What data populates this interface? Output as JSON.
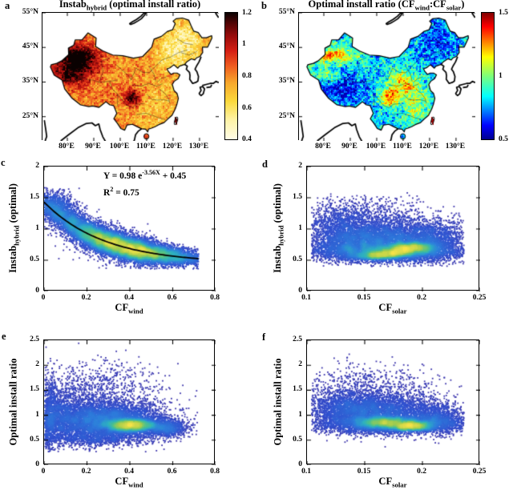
{
  "figure": {
    "background": "#ffffff",
    "panels": {
      "a": {
        "letter": "a",
        "title": [
          {
            "t": "Instab"
          },
          {
            "t": "hybrid",
            "sub": true
          },
          {
            "t": " (optimal install ratio)"
          }
        ],
        "x_ticks": {
          "labels": [
            "80°E",
            "90°E",
            "100°E",
            "110°E",
            "120°E",
            "130°E"
          ],
          "values": [
            80,
            90,
            100,
            110,
            120,
            130
          ]
        },
        "y_ticks": {
          "labels": [
            "55°N",
            "45°N",
            "35°N",
            "25°N"
          ],
          "values": [
            55,
            45,
            35,
            25
          ]
        },
        "colorbar": {
          "range": [
            0.4,
            1.2
          ],
          "tick_labels": [
            "1.2",
            "1",
            "0.8",
            "0.6",
            "0.4"
          ],
          "tick_values": [
            1.2,
            1,
            0.8,
            0.6,
            0.4
          ],
          "colormap": "hot_reversed"
        }
      },
      "b": {
        "letter": "b",
        "title": [
          {
            "t": "Optimal install ratio (CF"
          },
          {
            "t": "wind",
            "sub": true
          },
          {
            "t": ":CF"
          },
          {
            "t": "solar",
            "sub": true
          },
          {
            "t": ")"
          }
        ],
        "x_ticks": {
          "labels": [
            "80°E",
            "90°E",
            "100°E",
            "110°E",
            "120°E",
            "130°E"
          ],
          "values": [
            80,
            90,
            100,
            110,
            120,
            130
          ]
        },
        "y_ticks": {
          "labels": [
            "55°N",
            "45°N",
            "35°N",
            "25°N"
          ],
          "values": [
            55,
            45,
            35,
            25
          ]
        },
        "colorbar": {
          "range": [
            0.5,
            1.5
          ],
          "tick_labels": [
            "1.5",
            "1",
            "0.5"
          ],
          "tick_values": [
            1.5,
            1,
            0.5
          ],
          "colormap": "jet"
        }
      },
      "c": {
        "letter": "c",
        "ylabel": [
          {
            "t": "Instab"
          },
          {
            "t": "hybrid",
            "sub": true
          },
          {
            "t": " (optimal)"
          }
        ],
        "xlabel": [
          {
            "t": "CF"
          },
          {
            "t": "wind",
            "sub": true
          }
        ],
        "x_ticks": {
          "labels": [
            "0",
            "0.2",
            "0.4",
            "0.6",
            "0.8"
          ],
          "values": [
            0,
            0.2,
            0.4,
            0.6,
            0.8
          ]
        },
        "y_ticks": {
          "labels": [
            "0",
            "0.5",
            "1",
            "1.5",
            "2"
          ],
          "values": [
            0,
            0.5,
            1,
            1.5,
            2
          ]
        },
        "annotation": {
          "line1": [
            {
              "t": "Y = 0.98 e"
            },
            {
              "t": "-3.56X",
              "sup": true
            },
            {
              "t": " + 0.45"
            }
          ],
          "line2": [
            {
              "t": "R"
            },
            {
              "t": "2",
              "sup": true
            },
            {
              "t": " = 0.75"
            }
          ]
        }
      },
      "d": {
        "letter": "d",
        "ylabel": [
          {
            "t": "Instab"
          },
          {
            "t": "hybrid",
            "sub": true
          },
          {
            "t": " (optimal)"
          }
        ],
        "xlabel": [
          {
            "t": "CF"
          },
          {
            "t": "solar",
            "sub": true
          }
        ],
        "x_ticks": {
          "labels": [
            "0.1",
            "0.15",
            "0.2",
            "0.25"
          ],
          "values": [
            0.1,
            0.15,
            0.2,
            0.25
          ]
        },
        "y_ticks": {
          "labels": [
            "0",
            "0.5",
            "1",
            "1.5",
            "2"
          ],
          "values": [
            0,
            0.5,
            1,
            1.5,
            2
          ]
        }
      },
      "e": {
        "letter": "e",
        "ylabel": [
          {
            "t": "Optimal install ratio"
          }
        ],
        "xlabel": [
          {
            "t": "CF"
          },
          {
            "t": "wind",
            "sub": true
          }
        ],
        "x_ticks": {
          "labels": [
            "0",
            "0.2",
            "0.4",
            "0.6",
            "0.8"
          ],
          "values": [
            0,
            0.2,
            0.4,
            0.6,
            0.8
          ]
        },
        "y_ticks": {
          "labels": [
            "0",
            "0.5",
            "1",
            "1.5",
            "2",
            "2.5"
          ],
          "values": [
            0,
            0.5,
            1,
            1.5,
            2,
            2.5
          ]
        }
      },
      "f": {
        "letter": "f",
        "ylabel": [
          {
            "t": "Optimal install ratio"
          }
        ],
        "xlabel": [
          {
            "t": "CF"
          },
          {
            "t": "solar",
            "sub": true
          }
        ],
        "x_ticks": {
          "labels": [
            "0.1",
            "0.15",
            "0.2",
            "0.25"
          ],
          "values": [
            0.1,
            0.15,
            0.2,
            0.25
          ]
        },
        "y_ticks": {
          "labels": [
            "0",
            "0.5",
            "1",
            "1.5",
            "2",
            "2.5"
          ],
          "values": [
            0,
            0.5,
            1,
            1.5,
            2,
            2.5
          ]
        }
      }
    }
  },
  "colors": {
    "axis": "#000000",
    "density_colormap": [
      [
        0,
        "#3b2ba2"
      ],
      [
        0.25,
        "#3050cf"
      ],
      [
        0.45,
        "#2f7fdc"
      ],
      [
        0.6,
        "#2fb0c2"
      ],
      [
        0.72,
        "#51c28b"
      ],
      [
        0.84,
        "#a5cd4e"
      ],
      [
        1,
        "#f7e34a"
      ]
    ],
    "hot_reversed_colormap": [
      [
        0,
        "#fffce6"
      ],
      [
        0.15,
        "#fef3a8"
      ],
      [
        0.3,
        "#fbd93c"
      ],
      [
        0.45,
        "#f7a62b"
      ],
      [
        0.58,
        "#ef5c20"
      ],
      [
        0.7,
        "#d41f14"
      ],
      [
        0.82,
        "#960b0b"
      ],
      [
        0.92,
        "#4f0404"
      ],
      [
        1,
        "#0a0101"
      ]
    ],
    "jet_colormap": [
      [
        0,
        "#00008f"
      ],
      [
        0.11,
        "#0000ff"
      ],
      [
        0.34,
        "#00ffff"
      ],
      [
        0.5,
        "#7dff7a"
      ],
      [
        0.65,
        "#ffff00"
      ],
      [
        0.89,
        "#ff0000"
      ],
      [
        1,
        "#800000"
      ]
    ],
    "fit_line": "#000000"
  },
  "chart_data": [
    {
      "panel": "a",
      "type": "heatmap",
      "kind": "map",
      "title": "Instab_hybrid (optimal install ratio)",
      "region": "China",
      "lon_range": [
        70.6,
        137.3
      ],
      "lat_range": [
        18.0,
        55.0
      ],
      "value_range": [
        0.4,
        1.2
      ],
      "colormap": "hot_reversed",
      "colorbar_ticks": [
        0.4,
        0.6,
        0.8,
        1,
        1.2
      ],
      "x_tick_values": [
        80,
        90,
        100,
        110,
        120,
        130
      ],
      "y_tick_values": [
        55,
        45,
        35,
        25
      ],
      "pattern_model": {
        "base": 0.78,
        "noise_amp": 0.09,
        "bumps": [
          {
            "lon": 83,
            "lat": 42.5,
            "slon": 6,
            "slat": 2.5,
            "amp": 0.38
          },
          {
            "lon": 80,
            "lat": 36.5,
            "slon": 4.5,
            "slat": 2.5,
            "amp": 0.3
          },
          {
            "lon": 86,
            "lat": 40,
            "slon": 5,
            "slat": 3,
            "amp": 0.22
          },
          {
            "lon": 104.8,
            "lat": 30.5,
            "slon": 2.2,
            "slat": 1.8,
            "amp": 0.42
          },
          {
            "lon": 124,
            "lat": 46.5,
            "slon": 5.5,
            "slat": 4.5,
            "amp": -0.24
          },
          {
            "lon": 118,
            "lat": 42,
            "slon": 4,
            "slat": 3,
            "amp": -0.12
          },
          {
            "lon": 113,
            "lat": 27,
            "slon": 6,
            "slat": 5,
            "amp": -0.1
          },
          {
            "lon": 93,
            "lat": 31,
            "slon": 6,
            "slat": 3,
            "amp": 0.05
          }
        ],
        "taiwan_value": 1.1,
        "hainan_value": 0.88
      }
    },
    {
      "panel": "b",
      "type": "heatmap",
      "kind": "map",
      "title": "Optimal install ratio (CF_wind:CF_solar)",
      "region": "China",
      "lon_range": [
        70.6,
        137.3
      ],
      "lat_range": [
        18.0,
        55.0
      ],
      "value_range": [
        0.5,
        1.5
      ],
      "colormap": "jet",
      "colorbar_ticks": [
        0.5,
        1,
        1.5
      ],
      "x_tick_values": [
        80,
        90,
        100,
        110,
        120,
        130
      ],
      "y_tick_values": [
        55,
        45,
        35,
        25
      ],
      "pattern_model": {
        "base": 0.82,
        "noise_amp": 0.13,
        "bumps": [
          {
            "lon": 86,
            "lat": 33,
            "slon": 7,
            "slat": 3.5,
            "amp": -0.22
          },
          {
            "lon": 123,
            "lat": 47,
            "slon": 6,
            "slat": 5,
            "amp": -0.16
          },
          {
            "lon": 83,
            "lat": 42.8,
            "slon": 6,
            "slat": 1.6,
            "amp": 0.45
          },
          {
            "lon": 81,
            "lat": 37,
            "slon": 4,
            "slat": 1.4,
            "amp": 0.3
          },
          {
            "lon": 104.8,
            "lat": 30.8,
            "slon": 2.3,
            "slat": 1.8,
            "amp": 0.55
          },
          {
            "lon": 112,
            "lat": 34,
            "slon": 3.5,
            "slat": 2.5,
            "amp": 0.3
          },
          {
            "lon": 115,
            "lat": 27.5,
            "slon": 4,
            "slat": 3,
            "amp": 0.22
          },
          {
            "lon": 108,
            "lat": 36,
            "slon": 3,
            "slat": 2.5,
            "amp": 0.15
          }
        ],
        "taiwan_value": 1.45,
        "hainan_value": 0.75
      }
    },
    {
      "panel": "c",
      "type": "scatter",
      "kind": "density_scatter",
      "xlabel": "CF_wind",
      "ylabel": "Instab_hybrid (optimal)",
      "xlim": [
        0,
        0.8
      ],
      "ylim": [
        0,
        2
      ],
      "x_tick_values": [
        0,
        0.2,
        0.4,
        0.6,
        0.8
      ],
      "y_tick_values": [
        0,
        0.5,
        1,
        1.5,
        2
      ],
      "fit": {
        "expression": "Y = 0.98 e^(-3.56X) + 0.45",
        "r_squared": 0.75,
        "a": 0.98,
        "k": -3.56,
        "c": 0.45,
        "x_range": [
          0,
          0.72
        ]
      },
      "seed": 7,
      "clip": {
        "x": [
          0.002,
          0.72
        ],
        "y": [
          0.36,
          1.66
        ]
      },
      "clusters": [
        {
          "type": "band",
          "x_mean": 0.36,
          "x_sigma": 0.18,
          "x_min": 0.002,
          "x_max": 0.72,
          "sigma0": 0.125,
          "sigma_slope": -0.085,
          "count": 11000
        },
        {
          "type": "band",
          "x_mean": 0.3,
          "x_sigma": 0.22,
          "x_min": 0.002,
          "x_max": 0.72,
          "sigma0": 0.19,
          "sigma_slope": -0.12,
          "count": 2500
        },
        {
          "type": "gauss",
          "cx": 0.05,
          "cy": 1.35,
          "sx": 0.05,
          "sy": 0.13,
          "count": 700
        }
      ]
    },
    {
      "panel": "d",
      "type": "scatter",
      "kind": "density_scatter",
      "xlabel": "CF_solar",
      "ylabel": "Instab_hybrid (optimal)",
      "xlim": [
        0.1,
        0.25
      ],
      "ylim": [
        0,
        2
      ],
      "x_tick_values": [
        0.1,
        0.15,
        0.2,
        0.25
      ],
      "y_tick_values": [
        0,
        0.5,
        1,
        1.5,
        2
      ],
      "seed": 11,
      "clip": {
        "x": [
          0.104,
          0.236
        ],
        "y": [
          0.4,
          1.6
        ]
      },
      "clusters": [
        {
          "type": "gauss",
          "cx": 0.163,
          "cy": 0.83,
          "sx": 0.03,
          "sy": 0.17,
          "count": 5200
        },
        {
          "type": "gauss",
          "cx": 0.17,
          "cy": 0.63,
          "sx": 0.033,
          "sy": 0.075,
          "count": 3600
        },
        {
          "type": "gauss",
          "cx": 0.19,
          "cy": 0.7,
          "sx": 0.011,
          "sy": 0.035,
          "count": 1500
        },
        {
          "type": "gauss",
          "cx": 0.161,
          "cy": 0.575,
          "sx": 0.01,
          "sy": 0.028,
          "count": 800
        },
        {
          "type": "gauss",
          "cx": 0.176,
          "cy": 0.62,
          "sx": 0.009,
          "sy": 0.028,
          "count": 650
        },
        {
          "type": "gauss",
          "cx": 0.147,
          "cy": 1.18,
          "sx": 0.03,
          "sy": 0.17,
          "count": 900
        },
        {
          "type": "gauss",
          "cx": 0.21,
          "cy": 0.82,
          "sx": 0.013,
          "sy": 0.15,
          "count": 1100
        },
        {
          "type": "gauss",
          "cx": 0.128,
          "cy": 0.95,
          "sx": 0.014,
          "sy": 0.22,
          "count": 700
        }
      ]
    },
    {
      "panel": "e",
      "type": "scatter",
      "kind": "density_scatter",
      "xlabel": "CF_wind",
      "ylabel": "Optimal install ratio",
      "xlim": [
        0,
        0.8
      ],
      "ylim": [
        0,
        2.5
      ],
      "x_tick_values": [
        0,
        0.2,
        0.4,
        0.6,
        0.8
      ],
      "y_tick_values": [
        0,
        0.5,
        1,
        1.5,
        2,
        2.5
      ],
      "seed": 13,
      "clip": {
        "x": [
          0.004,
          0.715
        ],
        "y": [
          0.27,
          2.47
        ]
      },
      "clusters": [
        {
          "type": "gauss",
          "cx": 0.3,
          "cy": 0.88,
          "sx": 0.13,
          "sy": 0.2,
          "count": 5500
        },
        {
          "type": "gauss",
          "cx": 0.41,
          "cy": 0.8,
          "sx": 0.065,
          "sy": 0.062,
          "count": 2800
        },
        {
          "type": "gauss",
          "cx": 0.1,
          "cy": 1.0,
          "sx": 0.07,
          "sy": 0.3,
          "count": 1500
        },
        {
          "type": "gauss",
          "cx": 0.025,
          "cy": 0.95,
          "sx": 0.022,
          "sy": 0.4,
          "count": 900
        },
        {
          "type": "gauss",
          "cx": 0.28,
          "cy": 1.55,
          "sx": 0.15,
          "sy": 0.27,
          "count": 650
        },
        {
          "type": "gauss",
          "cx": 0.58,
          "cy": 0.74,
          "sx": 0.05,
          "sy": 0.09,
          "count": 800
        },
        {
          "type": "gauss",
          "cx": 0.22,
          "cy": 0.52,
          "sx": 0.12,
          "sy": 0.06,
          "count": 500
        }
      ]
    },
    {
      "panel": "f",
      "type": "scatter",
      "kind": "density_scatter",
      "xlabel": "CF_solar",
      "ylabel": "Optimal install ratio",
      "xlim": [
        0.1,
        0.25
      ],
      "ylim": [
        0,
        2.5
      ],
      "x_tick_values": [
        0.1,
        0.15,
        0.2,
        0.25
      ],
      "y_tick_values": [
        0,
        0.5,
        1,
        1.5,
        2,
        2.5
      ],
      "seed": 17,
      "clip": {
        "x": [
          0.104,
          0.236
        ],
        "y": [
          0.32,
          2.47
        ]
      },
      "clusters": [
        {
          "type": "gauss",
          "cx": 0.16,
          "cy": 1.05,
          "sx": 0.028,
          "sy": 0.2,
          "count": 4200
        },
        {
          "type": "gauss",
          "cx": 0.176,
          "cy": 0.82,
          "sx": 0.035,
          "sy": 0.09,
          "count": 3300
        },
        {
          "type": "gauss",
          "cx": 0.167,
          "cy": 0.86,
          "sx": 0.012,
          "sy": 0.05,
          "count": 1300
        },
        {
          "type": "gauss",
          "cx": 0.19,
          "cy": 0.78,
          "sx": 0.01,
          "sy": 0.04,
          "count": 1400
        },
        {
          "type": "gauss",
          "cx": 0.152,
          "cy": 1.55,
          "sx": 0.032,
          "sy": 0.24,
          "count": 650
        },
        {
          "type": "gauss",
          "cx": 0.212,
          "cy": 0.95,
          "sx": 0.013,
          "sy": 0.16,
          "count": 1000
        },
        {
          "type": "gauss",
          "cx": 0.13,
          "cy": 1.15,
          "sx": 0.015,
          "sy": 0.18,
          "count": 800
        }
      ]
    }
  ]
}
